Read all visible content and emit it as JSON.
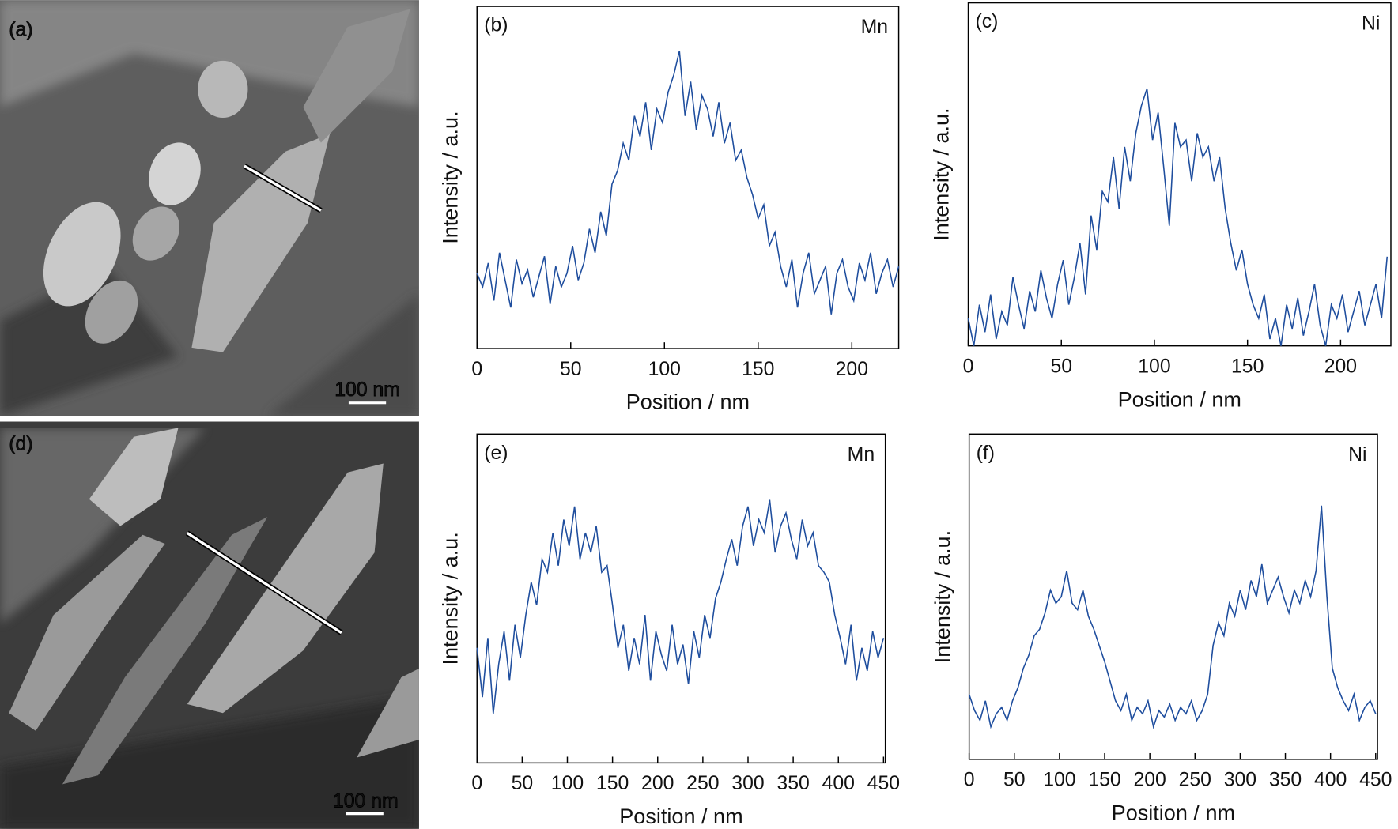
{
  "chart_data": [
    {
      "type": "image",
      "panel_label": "(a)",
      "scale_bar": "100 nm"
    },
    {
      "type": "line",
      "panel_label": "(b)",
      "element": "Mn",
      "xlabel": "Position / nm",
      "ylabel": "Intensity / a.u.",
      "x": [
        0,
        3,
        6,
        9,
        12,
        15,
        18,
        21,
        24,
        27,
        30,
        33,
        36,
        39,
        42,
        45,
        48,
        51,
        54,
        57,
        60,
        63,
        66,
        69,
        72,
        75,
        78,
        81,
        84,
        87,
        90,
        93,
        96,
        99,
        102,
        105,
        108,
        111,
        114,
        117,
        120,
        123,
        126,
        129,
        132,
        135,
        138,
        141,
        144,
        147,
        150,
        153,
        156,
        159,
        162,
        165,
        168,
        171,
        174,
        177,
        180,
        183,
        186,
        189,
        192,
        195,
        198,
        201,
        204,
        207,
        210,
        213,
        216,
        219,
        222,
        225
      ],
      "series": [
        {
          "color": "#1f4e9e",
          "values": [
            22,
            18,
            25,
            14,
            28,
            20,
            12,
            26,
            19,
            23,
            15,
            21,
            27,
            13,
            24,
            18,
            22,
            30,
            20,
            25,
            35,
            28,
            40,
            33,
            48,
            52,
            60,
            55,
            68,
            62,
            72,
            58,
            70,
            66,
            75,
            80,
            87,
            68,
            78,
            64,
            74,
            70,
            62,
            72,
            60,
            66,
            55,
            58,
            50,
            45,
            38,
            42,
            30,
            34,
            24,
            18,
            26,
            12,
            22,
            28,
            16,
            20,
            24,
            10,
            22,
            26,
            18,
            14,
            25,
            20,
            28,
            16,
            22,
            26,
            18,
            24
          ]
        }
      ],
      "xlim": [
        0,
        225
      ],
      "ylim": [
        0,
        100
      ],
      "xticks": [
        0,
        50,
        100,
        150,
        200
      ]
    },
    {
      "type": "line",
      "panel_label": "(c)",
      "element": "Ni",
      "xlabel": "Position / nm",
      "ylabel": "Intensity / a.u.",
      "x": [
        0,
        3,
        6,
        9,
        12,
        15,
        18,
        21,
        24,
        27,
        30,
        33,
        36,
        39,
        42,
        45,
        48,
        51,
        54,
        57,
        60,
        63,
        66,
        69,
        72,
        75,
        78,
        81,
        84,
        87,
        90,
        93,
        96,
        99,
        102,
        105,
        108,
        111,
        114,
        117,
        120,
        123,
        126,
        129,
        132,
        135,
        138,
        141,
        144,
        147,
        150,
        153,
        156,
        159,
        162,
        165,
        168,
        171,
        174,
        177,
        180,
        183,
        186,
        189,
        192,
        195,
        198,
        201,
        204,
        207,
        210,
        213,
        216,
        219,
        222,
        225
      ],
      "series": [
        {
          "color": "#1f4e9e",
          "values": [
            8,
            0,
            12,
            4,
            15,
            2,
            10,
            6,
            20,
            12,
            5,
            16,
            10,
            22,
            14,
            8,
            18,
            25,
            12,
            20,
            30,
            15,
            38,
            28,
            45,
            42,
            55,
            40,
            58,
            48,
            62,
            70,
            75,
            60,
            68,
            52,
            35,
            65,
            58,
            60,
            48,
            62,
            55,
            58,
            48,
            55,
            40,
            30,
            22,
            28,
            18,
            12,
            8,
            15,
            2,
            8,
            0,
            12,
            5,
            14,
            3,
            10,
            18,
            6,
            0,
            12,
            8,
            15,
            4,
            10,
            16,
            6,
            12,
            18,
            8,
            26
          ]
        }
      ],
      "xlim": [
        0,
        227
      ],
      "ylim": [
        0,
        100
      ],
      "xticks": [
        0,
        50,
        100,
        150,
        200
      ]
    },
    {
      "type": "image",
      "panel_label": "(d)",
      "scale_bar": "100 nm"
    },
    {
      "type": "line",
      "panel_label": "(e)",
      "element": "Mn",
      "xlabel": "Position / nm",
      "ylabel": "Intensity / a.u.",
      "x": [
        0,
        6,
        12,
        18,
        24,
        30,
        36,
        42,
        48,
        54,
        60,
        66,
        72,
        78,
        84,
        90,
        96,
        102,
        108,
        114,
        120,
        126,
        132,
        138,
        144,
        150,
        156,
        162,
        168,
        174,
        180,
        186,
        192,
        198,
        204,
        210,
        216,
        222,
        228,
        234,
        240,
        246,
        252,
        258,
        264,
        270,
        276,
        282,
        288,
        294,
        300,
        306,
        312,
        318,
        324,
        330,
        336,
        342,
        348,
        354,
        360,
        366,
        372,
        378,
        384,
        390,
        396,
        402,
        408,
        414,
        420,
        426,
        432,
        438,
        444,
        450
      ],
      "series": [
        {
          "color": "#1f4e9e",
          "values": [
            35,
            20,
            38,
            15,
            30,
            40,
            25,
            42,
            32,
            45,
            55,
            48,
            62,
            58,
            70,
            60,
            74,
            66,
            78,
            62,
            70,
            64,
            72,
            58,
            60,
            48,
            35,
            42,
            28,
            38,
            30,
            45,
            25,
            40,
            33,
            28,
            42,
            30,
            36,
            24,
            40,
            32,
            45,
            38,
            50,
            55,
            62,
            68,
            60,
            72,
            78,
            66,
            74,
            70,
            80,
            64,
            72,
            76,
            68,
            62,
            74,
            66,
            70,
            60,
            58,
            55,
            45,
            38,
            30,
            42,
            25,
            35,
            28,
            40,
            32,
            38
          ]
        }
      ],
      "xlim": [
        0,
        452
      ],
      "ylim": [
        0,
        100
      ],
      "xticks": [
        0,
        50,
        100,
        150,
        200,
        250,
        300,
        350,
        400,
        450
      ]
    },
    {
      "type": "line",
      "panel_label": "(f)",
      "element": "Ni",
      "xlabel": "Position / nm",
      "ylabel": "Intensity / a.u.",
      "x": [
        0,
        6,
        12,
        18,
        24,
        30,
        36,
        42,
        48,
        54,
        60,
        66,
        72,
        78,
        84,
        90,
        96,
        102,
        108,
        114,
        120,
        126,
        132,
        138,
        144,
        150,
        156,
        162,
        168,
        174,
        180,
        186,
        192,
        198,
        204,
        210,
        216,
        222,
        228,
        234,
        240,
        246,
        252,
        258,
        264,
        270,
        276,
        282,
        288,
        294,
        300,
        306,
        312,
        318,
        324,
        330,
        336,
        342,
        348,
        354,
        360,
        366,
        372,
        378,
        384,
        390,
        396,
        402,
        408,
        414,
        420,
        426,
        432,
        438,
        444,
        450
      ],
      "series": [
        {
          "color": "#1f4e9e",
          "values": [
            20,
            15,
            12,
            18,
            10,
            14,
            16,
            12,
            18,
            22,
            28,
            32,
            38,
            40,
            45,
            52,
            48,
            50,
            58,
            48,
            46,
            52,
            44,
            40,
            35,
            30,
            24,
            18,
            15,
            20,
            12,
            16,
            14,
            18,
            10,
            15,
            13,
            17,
            12,
            16,
            14,
            18,
            12,
            15,
            20,
            35,
            42,
            38,
            48,
            44,
            52,
            46,
            55,
            50,
            60,
            48,
            52,
            56,
            50,
            45,
            52,
            48,
            55,
            50,
            58,
            78,
            50,
            28,
            22,
            18,
            15,
            20,
            12,
            16,
            18,
            14
          ]
        }
      ],
      "xlim": [
        0,
        452
      ],
      "ylim": [
        0,
        100
      ],
      "xticks": [
        0,
        50,
        100,
        150,
        200,
        250,
        300,
        350,
        400,
        450
      ]
    }
  ]
}
